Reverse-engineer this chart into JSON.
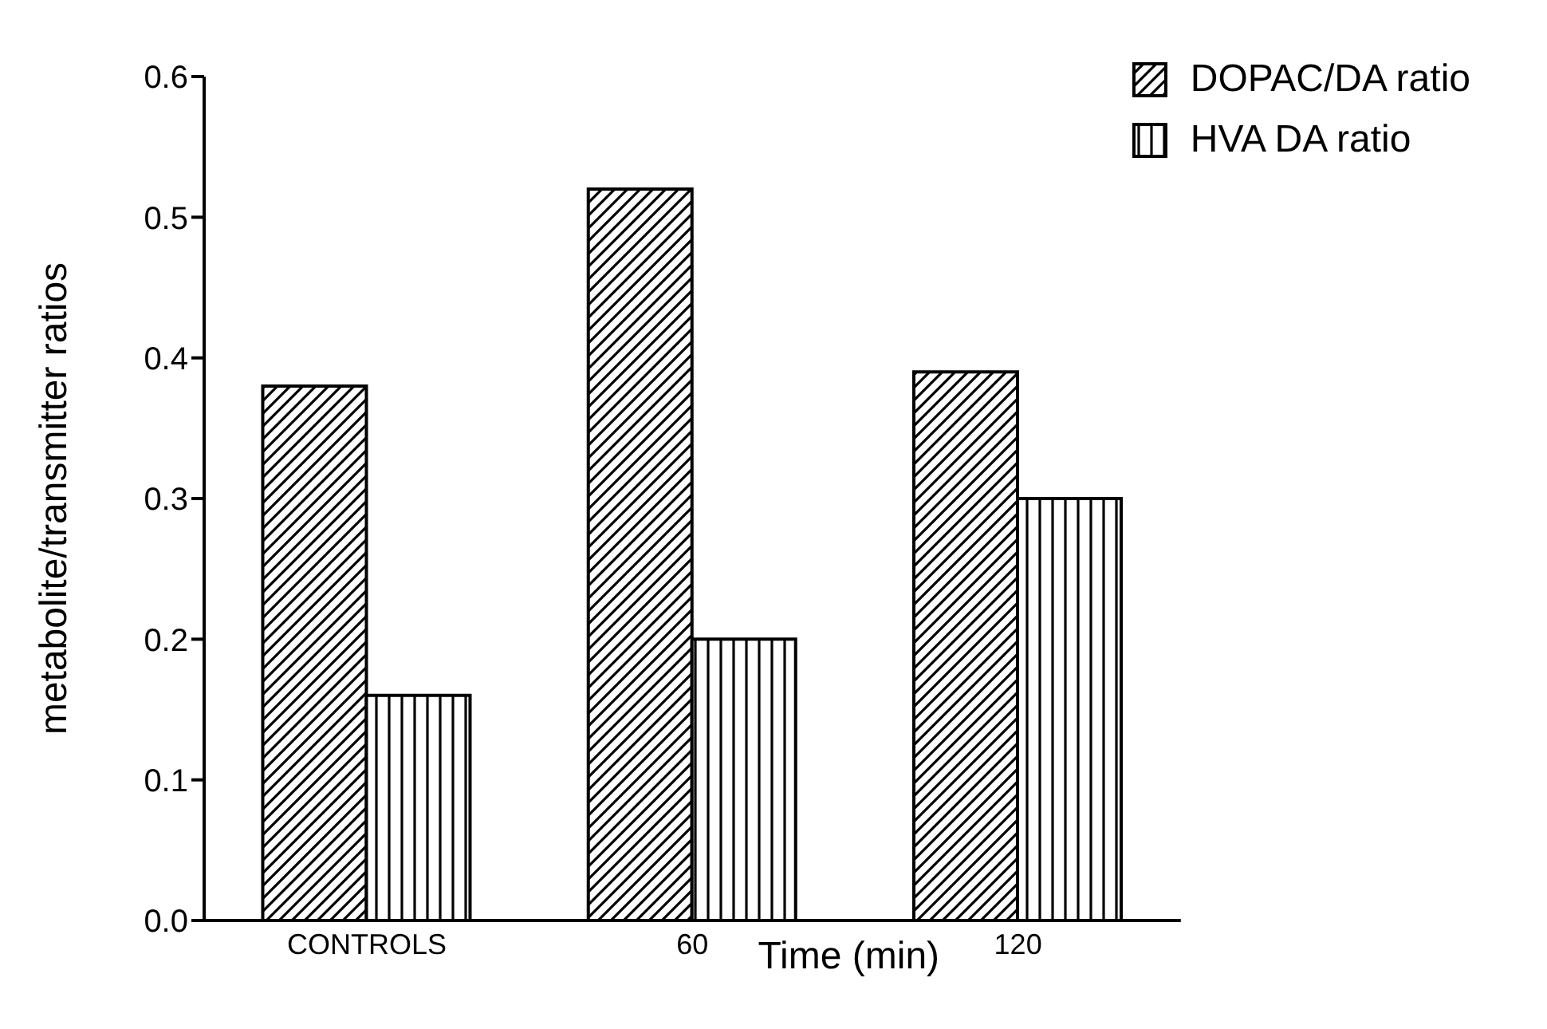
{
  "chart_data": {
    "type": "bar",
    "xlabel": "Time  (min)",
    "ylabel": "metabolite/transmitter   ratios",
    "categories": [
      "CONTROLS",
      "60",
      "120"
    ],
    "series": [
      {
        "name": "DOPAC/DA ratio",
        "color": "#000000",
        "values": [
          0.38,
          0.52,
          0.39
        ]
      },
      {
        "name": "HVA DA ratio",
        "color": "#000000",
        "values": [
          0.16,
          0.2,
          0.3
        ]
      }
    ],
    "ylim": [
      0,
      0.6
    ],
    "yticks": [
      {
        "value": 0,
        "label": "0.0"
      },
      0.1,
      0.2,
      0.3,
      0.4,
      0.5,
      0.6
    ],
    "grid": false,
    "legend": "top right"
  }
}
